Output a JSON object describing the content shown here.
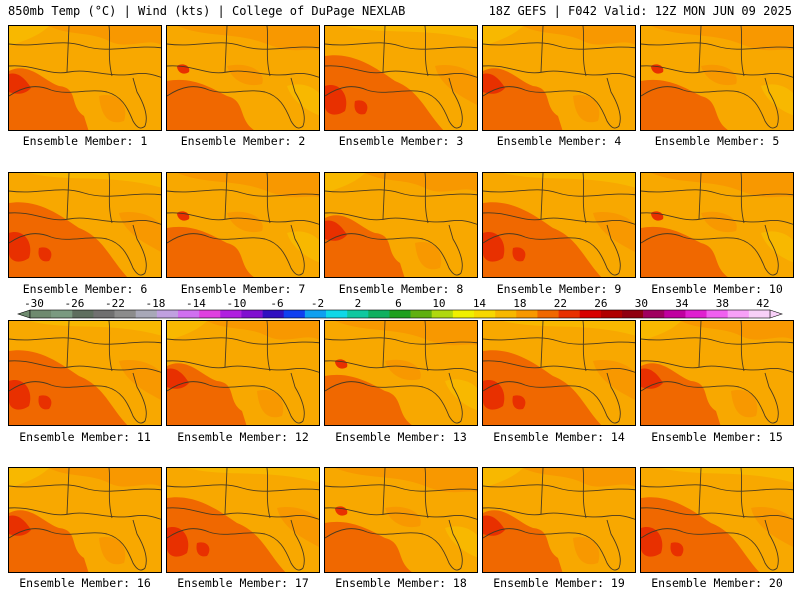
{
  "header": {
    "left": "850mb Temp (°C) | Wind (kts) | College of DuPage NEXLAB",
    "right": "18Z GEFS | F042 Valid: 12Z MON JUN 09 2025"
  },
  "members": [
    {
      "label": "Ensemble Member: 1",
      "variant": 1
    },
    {
      "label": "Ensemble Member: 2",
      "variant": 2
    },
    {
      "label": "Ensemble Member: 3",
      "variant": 3
    },
    {
      "label": "Ensemble Member: 4",
      "variant": 1
    },
    {
      "label": "Ensemble Member: 5",
      "variant": 2
    },
    {
      "label": "Ensemble Member: 6",
      "variant": 3
    },
    {
      "label": "Ensemble Member: 7",
      "variant": 2
    },
    {
      "label": "Ensemble Member: 8",
      "variant": 1
    },
    {
      "label": "Ensemble Member: 9",
      "variant": 3
    },
    {
      "label": "Ensemble Member: 10",
      "variant": 2
    },
    {
      "label": "Ensemble Member: 11",
      "variant": 3
    },
    {
      "label": "Ensemble Member: 12",
      "variant": 1
    },
    {
      "label": "Ensemble Member: 13",
      "variant": 2
    },
    {
      "label": "Ensemble Member: 14",
      "variant": 3
    },
    {
      "label": "Ensemble Member: 15",
      "variant": 1
    },
    {
      "label": "Ensemble Member: 16",
      "variant": 1
    },
    {
      "label": "Ensemble Member: 17",
      "variant": 3
    },
    {
      "label": "Ensemble Member: 18",
      "variant": 2
    },
    {
      "label": "Ensemble Member: 19",
      "variant": 1
    },
    {
      "label": "Ensemble Member: 20",
      "variant": 3
    }
  ],
  "colorbar": {
    "ticks": [
      "-30",
      "-26",
      "-22",
      "-18",
      "-14",
      "-10",
      "-6",
      "-2",
      "2",
      "6",
      "10",
      "14",
      "18",
      "22",
      "26",
      "30",
      "34",
      "38",
      "42"
    ],
    "colors": [
      "#6e8a6e",
      "#7a9a80",
      "#5e6e5e",
      "#707070",
      "#8c8c8c",
      "#a8a8b8",
      "#c0a0e0",
      "#d070f0",
      "#e040e0",
      "#b020e0",
      "#8010d0",
      "#3010c0",
      "#1040f0",
      "#10a0f0",
      "#10d8e8",
      "#10c8a0",
      "#10b060",
      "#20a020",
      "#60b010",
      "#b0d810",
      "#f0f000",
      "#f8d800",
      "#f8b800",
      "#f89800",
      "#f06800",
      "#e83000",
      "#d80000",
      "#b00000",
      "#900010",
      "#a00060",
      "#c000a0",
      "#e020d0",
      "#f060f0",
      "#f8a0f8",
      "#f8d0f8"
    ]
  }
}
